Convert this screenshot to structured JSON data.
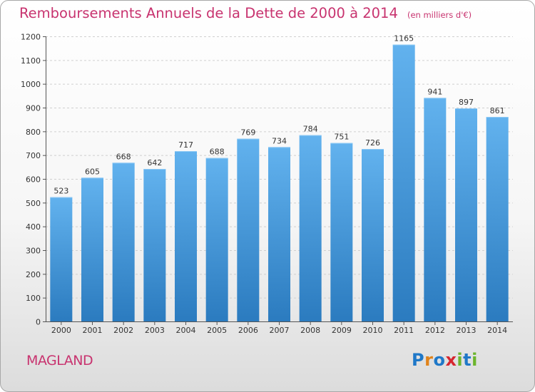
{
  "header": {
    "title": "Remboursements Annuels de la Dette de 2000 à 2014",
    "subtitle": "(en milliers d'€)"
  },
  "footer": {
    "commune": "MAGLAND",
    "logo_text": "Proxiti"
  },
  "colors": {
    "title": "#c8336f",
    "bar_light": "#62b2ee",
    "bar_dark": "#2b7bbf",
    "grid": "#cfcfcf"
  },
  "chart_data": {
    "type": "bar",
    "title": "Remboursements Annuels de la Dette de 2000 à 2014",
    "xlabel": "",
    "ylabel": "",
    "categories": [
      "2000",
      "2001",
      "2002",
      "2003",
      "2004",
      "2005",
      "2006",
      "2007",
      "2008",
      "2009",
      "2010",
      "2011",
      "2012",
      "2013",
      "2014"
    ],
    "values": [
      523,
      605,
      668,
      642,
      717,
      688,
      769,
      734,
      784,
      751,
      726,
      1165,
      941,
      897,
      861
    ],
    "ylim": [
      0,
      1200
    ],
    "yticks": [
      0,
      100,
      200,
      300,
      400,
      500,
      600,
      700,
      800,
      900,
      1000,
      1100,
      1200
    ],
    "grid": true,
    "legend": "none"
  }
}
